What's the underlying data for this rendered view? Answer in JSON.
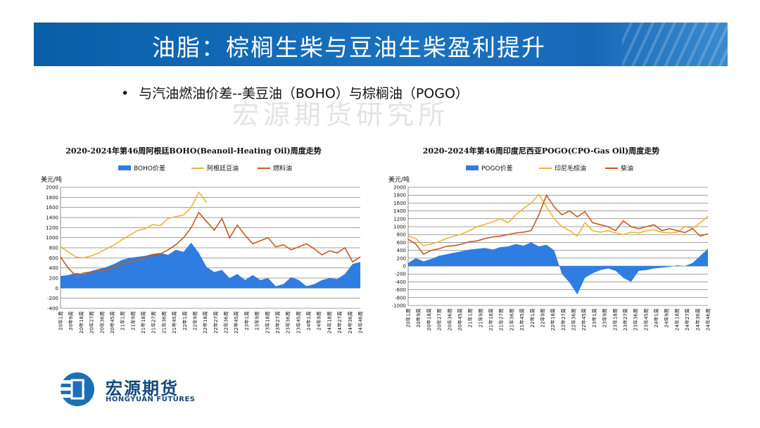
{
  "slide": {
    "title": "油脂：棕榈生柴与豆油生柴盈利提升",
    "bullet": "与汽油燃油价差--美豆油（BOHO）与棕榈油（POGO）",
    "watermark": "宏源期货研究所"
  },
  "logo": {
    "cn": "宏源期货",
    "en": "HONGYUAN FUTURES"
  },
  "colors": {
    "spread": "#2f7de1",
    "oil": "#f2b233",
    "fuel": "#c85a1e"
  },
  "chart_data": [
    {
      "type": "area+line",
      "title": "2020-2024年第46周阿根廷BOHO(Beanoil-Heating Oil)周度走势",
      "ylabel": "美元/吨",
      "ylim": [
        -400,
        2000
      ],
      "yticks": [
        2000,
        1800,
        1600,
        1400,
        1200,
        1000,
        800,
        600,
        400,
        200,
        0,
        -200,
        -400
      ],
      "xticks": [
        "20年1周",
        "20年9周",
        "20年18周",
        "20年27周",
        "20年36周",
        "20年45周",
        "21年1周",
        "21年9周",
        "21年18周",
        "21年27周",
        "21年36周",
        "21年45周",
        "22年1周",
        "22年9周",
        "22年18周",
        "22年27周",
        "22年36周",
        "22年45周",
        "23年1周",
        "23年9周",
        "23年18周",
        "23年27周",
        "23年36周",
        "23年45周",
        "24年1周",
        "24年9周",
        "24年18周",
        "24年27周",
        "24年36周",
        "24年46周"
      ],
      "series": [
        {
          "name": "BOHO价差",
          "kind": "area",
          "values": [
            240,
            260,
            300,
            280,
            340,
            380,
            420,
            480,
            560,
            600,
            620,
            640,
            680,
            700,
            660,
            760,
            720,
            900,
            700,
            420,
            320,
            360,
            200,
            280,
            160,
            260,
            160,
            200,
            40,
            80,
            220,
            160,
            40,
            80,
            160,
            200,
            180,
            280,
            480,
            520
          ]
        },
        {
          "name": "阿根廷豆油",
          "kind": "line",
          "values": [
            820,
            720,
            620,
            600,
            640,
            700,
            780,
            860,
            960,
            1050,
            1140,
            1180,
            1260,
            1240,
            1380,
            1420,
            1450,
            1600,
            1900,
            1700,
            null,
            null,
            null,
            null,
            null,
            null,
            null,
            null,
            null,
            null,
            null,
            null,
            null,
            null,
            null,
            null,
            null,
            null,
            null,
            null
          ]
        },
        {
          "name": "燃料油",
          "kind": "line",
          "values": [
            620,
            400,
            240,
            300,
            320,
            340,
            360,
            420,
            460,
            520,
            560,
            600,
            660,
            680,
            760,
            860,
            1000,
            1200,
            1500,
            1320,
            1150,
            1380,
            1000,
            1250,
            1050,
            880,
            940,
            1000,
            820,
            860,
            760,
            820,
            880,
            780,
            660,
            740,
            700,
            800,
            520,
            620
          ]
        }
      ]
    },
    {
      "type": "area+line",
      "title": "2020-2024年第46周印度尼西亚POGO(CPO-Gas Oil)周度走势",
      "ylabel": "美元/吨",
      "ylim": [
        -1000,
        2000
      ],
      "yticks": [
        2000,
        1800,
        1600,
        1400,
        1200,
        1000,
        800,
        600,
        400,
        200,
        0,
        -200,
        -400,
        -600,
        -800,
        -1000
      ],
      "xticks": [
        "20年1周",
        "20年9周",
        "20年18周",
        "20年27周",
        "20年36周",
        "20年45周",
        "21年1周",
        "21年9周",
        "21年18周",
        "21年27周",
        "21年36周",
        "21年45周",
        "22年1周",
        "22年9周",
        "22年18周",
        "22年27周",
        "22年36周",
        "22年45周",
        "23年1周",
        "23年9周",
        "23年18周",
        "23年27周",
        "23年36周",
        "23年45周",
        "24年1周",
        "24年9周",
        "24年18周",
        "24年27周",
        "24年36周",
        "24年46周"
      ],
      "series": [
        {
          "name": "POGO价差",
          "kind": "area",
          "values": [
            80,
            200,
            120,
            180,
            260,
            300,
            340,
            380,
            420,
            440,
            460,
            420,
            480,
            500,
            560,
            520,
            600,
            500,
            540,
            400,
            -200,
            -420,
            -720,
            -300,
            -180,
            -100,
            -60,
            -120,
            -300,
            -400,
            -120,
            -100,
            -60,
            -40,
            -20,
            20,
            0,
            80,
            260,
            440
          ]
        },
        {
          "name": "印尼毛棕油",
          "kind": "line",
          "values": [
            760,
            700,
            520,
            560,
            620,
            700,
            760,
            820,
            900,
            1000,
            1060,
            1120,
            1200,
            1100,
            1300,
            1460,
            1600,
            1820,
            1500,
            1200,
            1000,
            900,
            760,
            1100,
            900,
            860,
            900,
            840,
            800,
            860,
            840,
            900,
            920,
            860,
            840,
            860,
            1000,
            960,
            1100,
            1260
          ]
        },
        {
          "name": "柴油",
          "kind": "line",
          "values": [
            680,
            560,
            300,
            400,
            440,
            500,
            520,
            560,
            620,
            640,
            700,
            740,
            760,
            800,
            840,
            860,
            900,
            1300,
            1800,
            1500,
            1300,
            1400,
            1250,
            1380,
            1100,
            1050,
            1000,
            900,
            1150,
            1000,
            950,
            1000,
            1050,
            900,
            950,
            900,
            850,
            950,
            760,
            820
          ]
        }
      ]
    }
  ]
}
